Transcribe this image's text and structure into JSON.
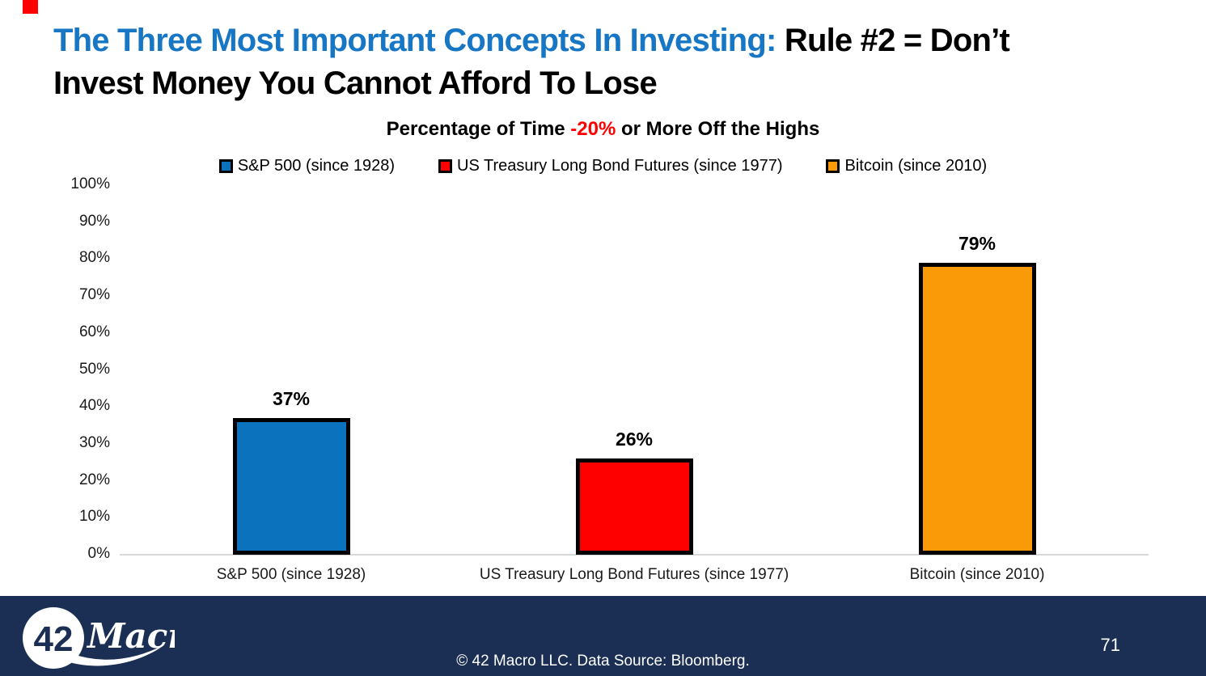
{
  "slide": {
    "corner_accent_color": "#FF0000",
    "title": {
      "line1_blue": "The Three Most Important Concepts In Investing:",
      "line1_black": " Rule #2 = Don’t",
      "line2_black": "Invest Money You Cannot Afford To Lose",
      "blue_color": "#1777C5"
    }
  },
  "chart_data": {
    "type": "bar",
    "title_parts": {
      "pre": "Percentage of Time ",
      "highlight": "-20%",
      "post": " or More Off the Highs"
    },
    "highlight_color": "#FF0000",
    "categories": [
      "S&P 500 (since 1928)",
      "US Treasury Long Bond Futures (since 1977)",
      "Bitcoin (since 2010)"
    ],
    "values": [
      37,
      26,
      79
    ],
    "value_labels": [
      "37%",
      "26%",
      "79%"
    ],
    "series_colors": [
      "#0B72BE",
      "#FF0000",
      "#FB9A08"
    ],
    "bar_border_color": "#000000",
    "legend": [
      {
        "label": "S&P 500 (since 1928)",
        "color": "#0B72BE"
      },
      {
        "label": "US Treasury Long Bond Futures (since 1977)",
        "color": "#FF0000"
      },
      {
        "label": "Bitcoin (since 2010)",
        "color": "#FB9A08"
      }
    ],
    "legend_position": "top",
    "ylim": [
      0,
      100
    ],
    "y_ticks": [
      "100%",
      "90%",
      "80%",
      "70%",
      "60%",
      "50%",
      "40%",
      "30%",
      "20%",
      "10%",
      "0%"
    ],
    "grid": false,
    "axis_line_color": "#D8D8D8"
  },
  "footer": {
    "background_color": "#1B2F54",
    "logo": {
      "circle_text": "42",
      "wordmark": "Macro"
    },
    "copyright": "© 42 Macro LLC. Data Source: Bloomberg.",
    "page_number": "71"
  }
}
